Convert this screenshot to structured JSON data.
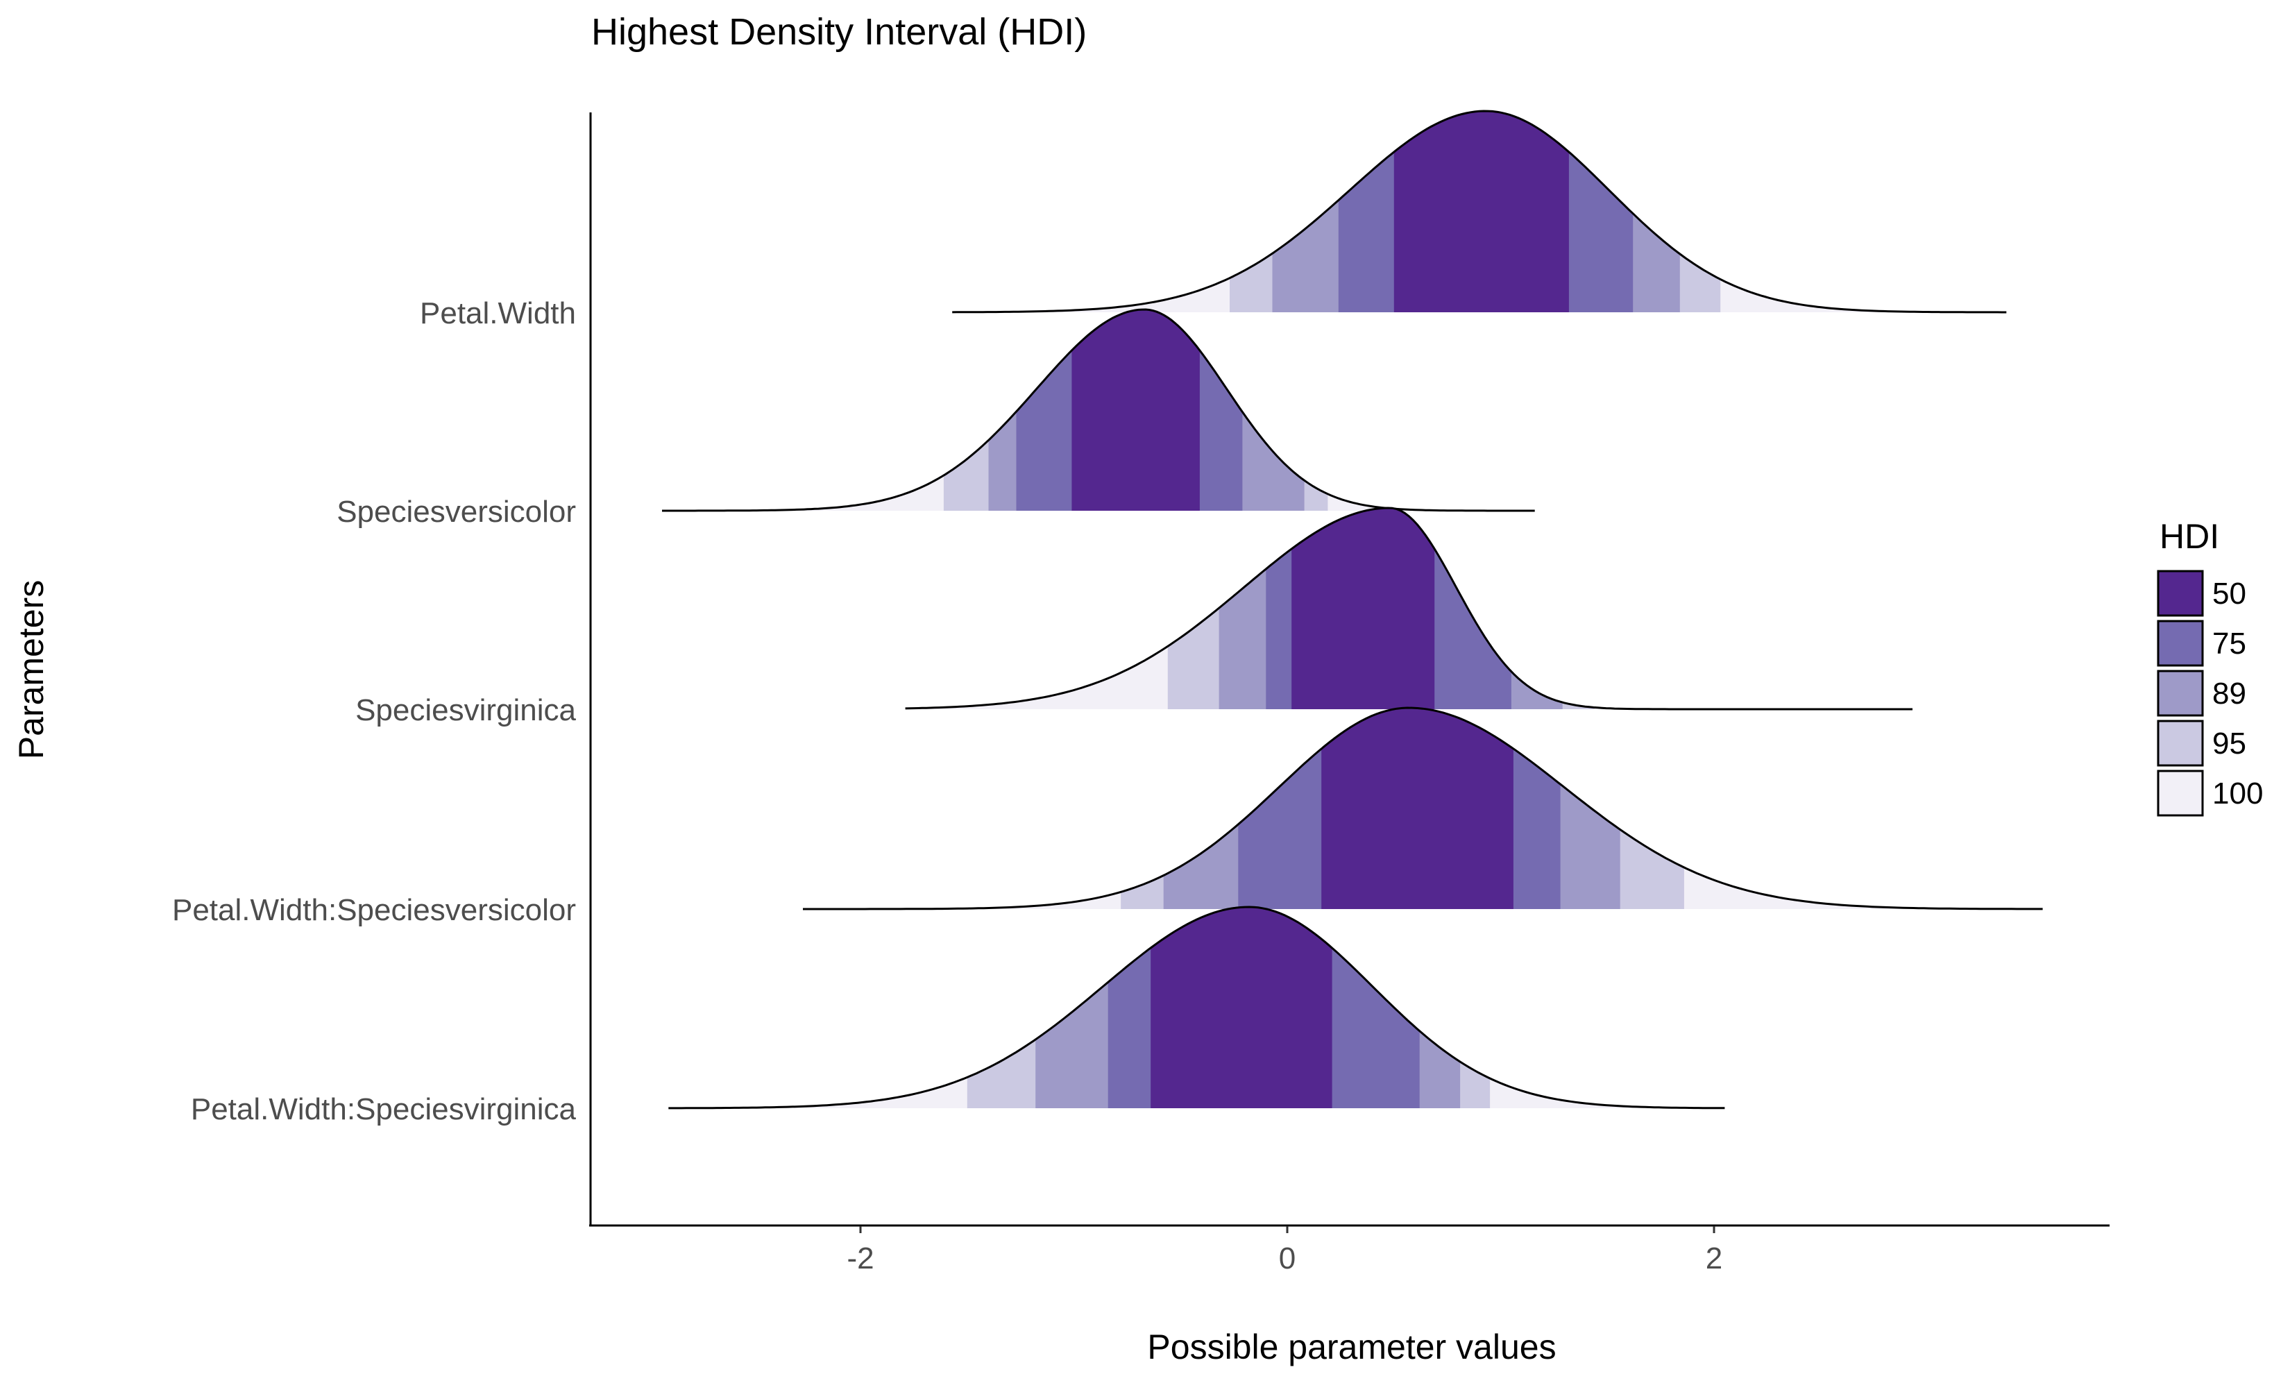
{
  "chart_data": {
    "type": "area",
    "title": "Highest Density Interval (HDI)",
    "xlabel": "Possible parameter values",
    "ylabel": "Parameters",
    "xlim": [
      -3.25,
      3.85
    ],
    "x_ticks": [
      -2,
      0,
      2
    ],
    "x_tick_labels": [
      "-2",
      "0",
      "2"
    ],
    "grid": false,
    "legend": {
      "title": "HDI",
      "position": "right",
      "levels": [
        "50",
        "75",
        "89",
        "95",
        "100"
      ],
      "colors": [
        "#54278f",
        "#756bb1",
        "#9e9ac8",
        "#cbc9e2",
        "#f2f0f7"
      ]
    },
    "series": [
      {
        "name": "Petal.Width",
        "peak": 0.93,
        "hdi": {
          "50": [
            0.5,
            1.32
          ],
          "75": [
            0.24,
            1.62
          ],
          "89": [
            -0.07,
            1.84
          ],
          "95": [
            -0.27,
            2.03
          ],
          "100": [
            -1.57,
            3.37
          ]
        }
      },
      {
        "name": "Speciesversicolor",
        "peak": -0.67,
        "hdi": {
          "50": [
            -1.01,
            -0.41
          ],
          "75": [
            -1.27,
            -0.21
          ],
          "89": [
            -1.4,
            0.08
          ],
          "95": [
            -1.61,
            0.19
          ],
          "100": [
            -2.93,
            1.16
          ]
        }
      },
      {
        "name": "Speciesvirginica",
        "peak": 0.48,
        "hdi": {
          "50": [
            0.02,
            0.69
          ],
          "75": [
            -0.1,
            1.05
          ],
          "89": [
            -0.32,
            1.29
          ],
          "95": [
            -0.56,
            1.44
          ],
          "100": [
            -1.79,
            2.93
          ]
        }
      },
      {
        "name": "Petal.Width:Speciesversicolor",
        "peak": 0.57,
        "hdi": {
          "50": [
            0.16,
            1.06
          ],
          "75": [
            -0.23,
            1.28
          ],
          "89": [
            -0.58,
            1.56
          ],
          "95": [
            -0.78,
            1.86
          ],
          "100": [
            -2.27,
            3.54
          ]
        }
      },
      {
        "name": "Petal.Width:Speciesvirginica",
        "peak": -0.18,
        "hdi": {
          "50": [
            -0.64,
            0.21
          ],
          "75": [
            -0.84,
            0.62
          ],
          "89": [
            -1.18,
            0.81
          ],
          "95": [
            -1.5,
            0.95
          ],
          "100": [
            -2.9,
            2.05
          ]
        }
      }
    ]
  }
}
